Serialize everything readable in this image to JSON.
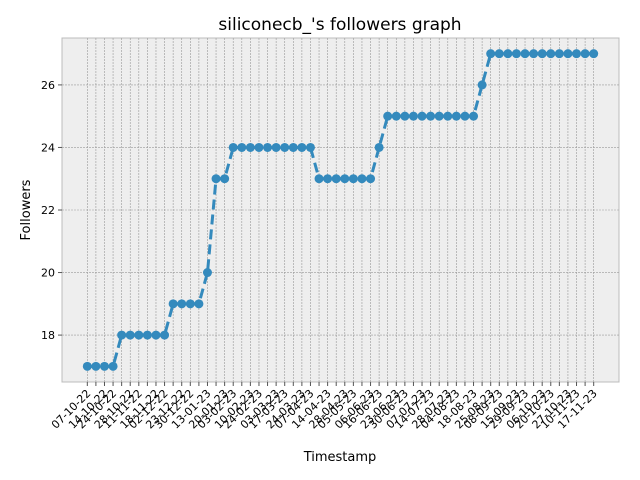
{
  "chart_data": {
    "type": "line",
    "title": "siliconecb_'s followers graph",
    "x_label": "Timestamp",
    "y_label": "Followers",
    "categories": [
      "07-10-22",
      null,
      "14-10-22",
      "24-10-22",
      null,
      "28-10-22",
      "11-11-22",
      null,
      "18-11-22",
      "02-12-22",
      null,
      "23-12-22",
      "30-12-22",
      null,
      "13-01-23",
      null,
      "20-01-23",
      "03-02-23",
      null,
      "10-02-23",
      "24-02-23",
      null,
      "03-03-23",
      "17-03-23",
      null,
      "24-03-23",
      "07-04-23",
      null,
      "14-04-23",
      null,
      "28-04-23",
      "05-05-23",
      null,
      "06-06-23",
      "16-06-23",
      null,
      "23-06-23",
      "30-06-23",
      null,
      "07-07-23",
      "14-07-23",
      null,
      "28-07-23",
      "04-08-23",
      null,
      "18-08-23",
      null,
      "25-08-23",
      "08-09-23",
      null,
      "15-09-23",
      "29-09-23",
      null,
      "06-10-23",
      "20-10-23",
      null,
      "27-10-23",
      "10-11-23",
      null,
      "17-11-23"
    ],
    "series": [
      {
        "name": "Followers",
        "color": "#348ABD",
        "values": [
          17,
          17,
          17,
          17,
          18,
          18,
          18,
          18,
          18,
          18,
          19,
          19,
          19,
          19,
          20,
          23,
          23,
          24,
          24,
          24,
          24,
          24,
          24,
          24,
          24,
          24,
          24,
          23,
          23,
          23,
          23,
          23,
          23,
          23,
          24,
          25,
          25,
          25,
          25,
          25,
          25,
          25,
          25,
          25,
          25,
          25,
          26,
          27,
          27,
          27,
          27,
          27,
          27,
          27,
          27,
          27,
          27,
          27,
          27,
          27
        ]
      }
    ],
    "ylim": [
      16.5,
      27.5
    ],
    "yticks": [
      18,
      20,
      22,
      24,
      26
    ],
    "grid": true
  }
}
